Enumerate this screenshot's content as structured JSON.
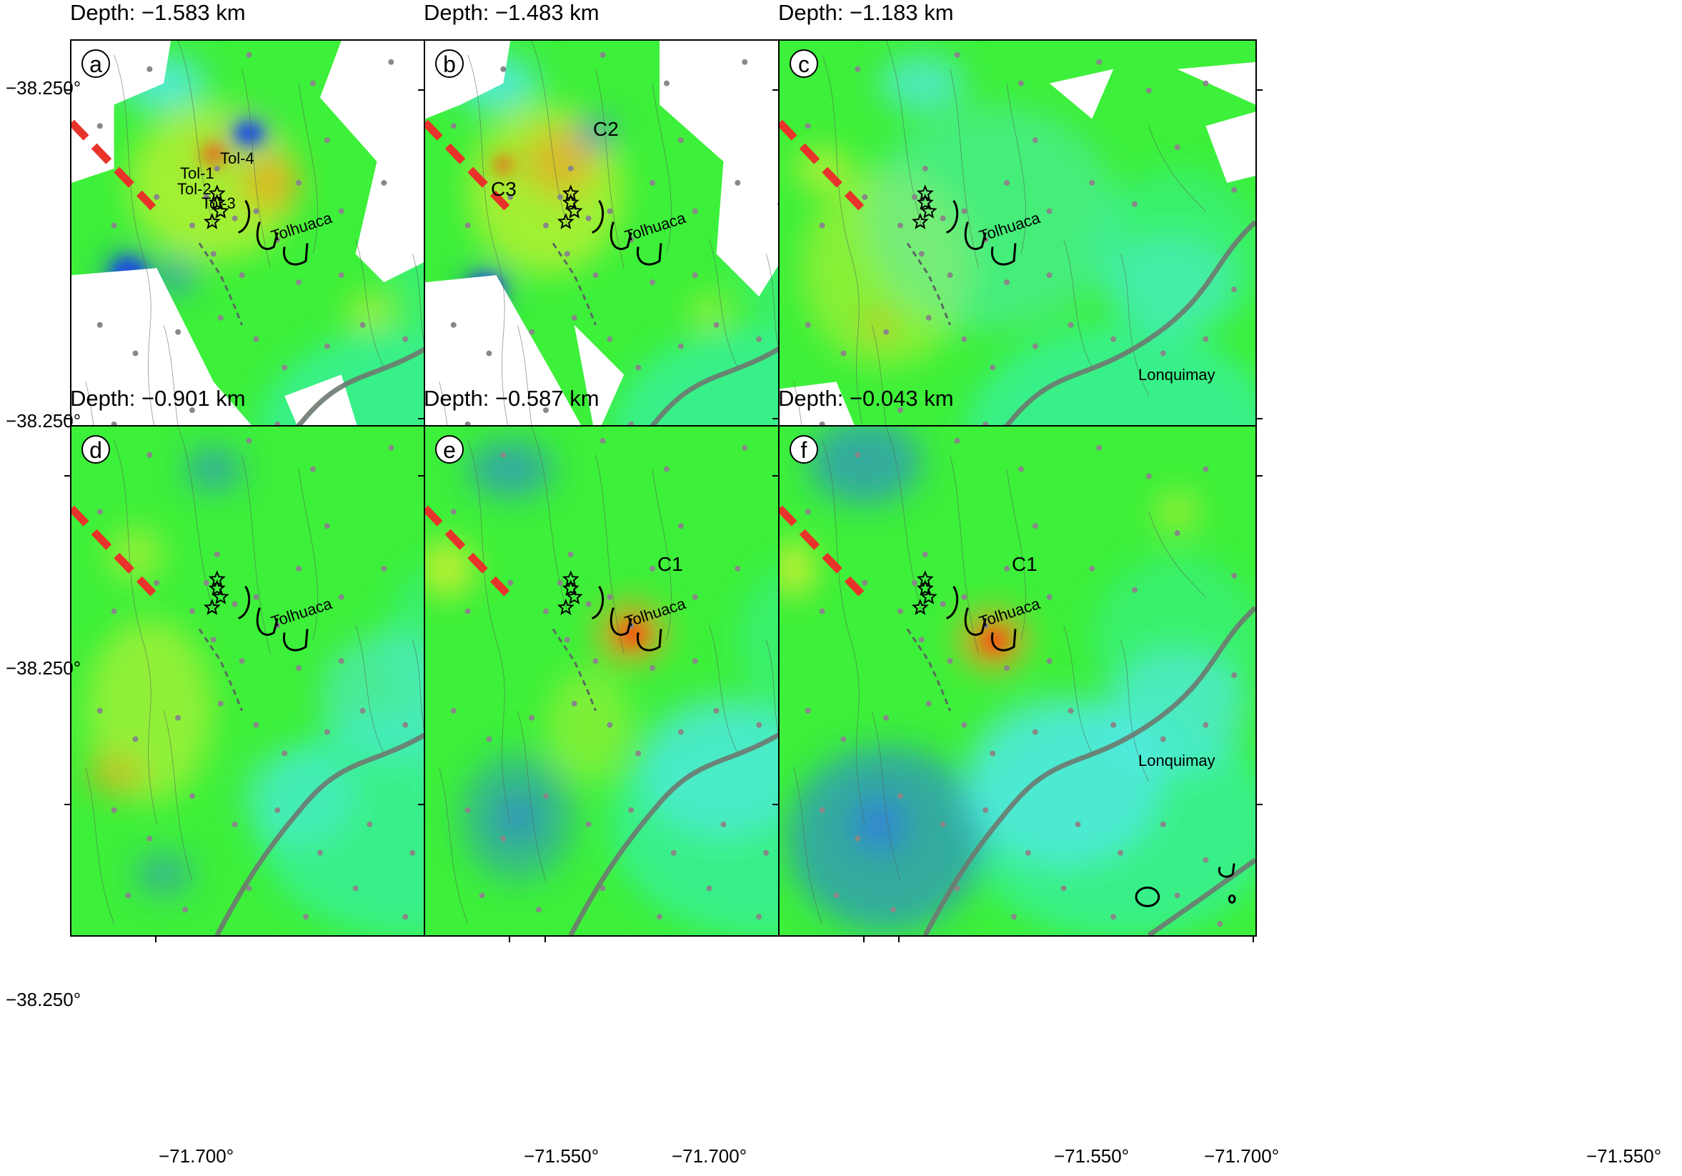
{
  "panels": [
    {
      "id": "a",
      "depth": "Depth: −1.583 km",
      "variant": "a",
      "labels": {
        "tol1": "Tol-1",
        "tol2": "Tol-2",
        "tol3": "Tol-3",
        "tol4": "Tol-4",
        "c1": "",
        "c2": "",
        "c3": ""
      }
    },
    {
      "id": "b",
      "depth": "Depth: −1.483 km",
      "variant": "b",
      "labels": {
        "tol1": "",
        "tol2": "",
        "tol3": "",
        "tol4": "",
        "c1": "",
        "c2": "C2",
        "c3": "C3"
      }
    },
    {
      "id": "c",
      "depth": "Depth: −1.183 km",
      "variant": "c",
      "labels": {
        "tol1": "",
        "tol2": "",
        "tol3": "",
        "tol4": "",
        "c1": "",
        "c2": "",
        "c3": ""
      }
    },
    {
      "id": "d",
      "depth": "Depth: −0.901 km",
      "variant": "d",
      "labels": {
        "tol1": "",
        "tol2": "",
        "tol3": "",
        "tol4": "",
        "c1": "",
        "c2": "",
        "c3": ""
      }
    },
    {
      "id": "e",
      "depth": "Depth: −0.587 km",
      "variant": "e",
      "labels": {
        "tol1": "",
        "tol2": "",
        "tol3": "",
        "tol4": "",
        "c1": "C1",
        "c2": "",
        "c3": ""
      }
    },
    {
      "id": "f",
      "depth": "Depth: −0.043 km",
      "variant": "f",
      "labels": {
        "tol1": "",
        "tol2": "",
        "tol3": "",
        "tol4": "",
        "c1": "C1",
        "c2": "",
        "c3": ""
      }
    }
  ],
  "volcano_labels": {
    "tolhuaca": "Tolhuaca",
    "lonquimay": "Lonquimay"
  },
  "y_ticks": [
    "−38.250°",
    "−38.250°"
  ],
  "x_ticks": [
    "−71.700°",
    "−71.550°"
  ],
  "colors": {
    "green": "#3df03a",
    "cyan": "#35f0c8",
    "light_cyan": "#55e8f0",
    "blue": "#2f7ee0",
    "dark_blue": "#1e50e0",
    "yellow": "#f4f030",
    "orange": "#f6a020",
    "red_orange": "#f05a10",
    "fault_red": "#e8332a",
    "fault_gray": "#6d7a70",
    "station": "#888888"
  }
}
